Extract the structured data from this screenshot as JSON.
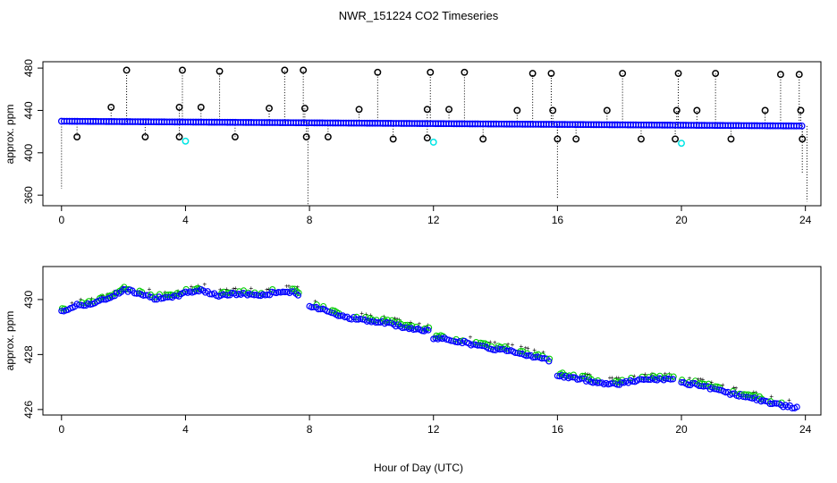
{
  "title": "NWR_151224  CO2 Timeseries",
  "xlabel": "Hour of Day (UTC)",
  "colors": {
    "raw": "#000000",
    "averaged": "#0000ff",
    "flagged": "#00e5e5",
    "secondary": "#00cc00",
    "tertiary": "#ff0000",
    "frame": "#000000"
  },
  "chart_data": [
    {
      "type": "scatter",
      "name": "full-range",
      "ylabel": "approx. ppm",
      "xlim": [
        -0.6,
        24.5
      ],
      "ylim": [
        350,
        486
      ],
      "xticks": [
        0,
        4,
        8,
        12,
        16,
        20,
        24
      ],
      "yticks": [
        360,
        400,
        440,
        480
      ],
      "baseline": {
        "x0": 0,
        "x1": 23.9,
        "y0": 429.8,
        "y1": 425.3
      },
      "spikes_high": [
        [
          1.6,
          443
        ],
        [
          2.1,
          478
        ],
        [
          3.8,
          443
        ],
        [
          3.9,
          478
        ],
        [
          4.5,
          443
        ],
        [
          5.1,
          477
        ],
        [
          6.7,
          442
        ],
        [
          7.2,
          478
        ],
        [
          7.8,
          478
        ],
        [
          7.85,
          442
        ],
        [
          9.6,
          441
        ],
        [
          10.2,
          476
        ],
        [
          11.8,
          441
        ],
        [
          11.9,
          476
        ],
        [
          12.5,
          441
        ],
        [
          13.0,
          476
        ],
        [
          14.7,
          440
        ],
        [
          15.2,
          475
        ],
        [
          15.8,
          475
        ],
        [
          15.85,
          440
        ],
        [
          17.6,
          440
        ],
        [
          18.1,
          475
        ],
        [
          19.9,
          475
        ],
        [
          19.85,
          440
        ],
        [
          20.5,
          440
        ],
        [
          21.1,
          475
        ],
        [
          22.7,
          440
        ],
        [
          23.2,
          474
        ],
        [
          23.8,
          474
        ],
        [
          23.85,
          440
        ]
      ],
      "spikes_low": [
        [
          0.5,
          415
        ],
        [
          2.7,
          415
        ],
        [
          3.8,
          415
        ],
        [
          5.6,
          415
        ],
        [
          7.9,
          415
        ],
        [
          8.6,
          415
        ],
        [
          10.7,
          413
        ],
        [
          11.8,
          414
        ],
        [
          13.6,
          413
        ],
        [
          16.0,
          413
        ],
        [
          16.6,
          413
        ],
        [
          18.7,
          413
        ],
        [
          19.8,
          413
        ],
        [
          21.6,
          413
        ],
        [
          23.9,
          413
        ]
      ],
      "flagged_points": [
        [
          4.0,
          411
        ],
        [
          12.0,
          410
        ],
        [
          20.0,
          409
        ]
      ],
      "drop_lines": [
        [
          0.0,
          366
        ],
        [
          7.95,
          351
        ],
        [
          16.0,
          357
        ],
        [
          23.9,
          380
        ],
        [
          24.05,
          354
        ]
      ]
    },
    {
      "type": "scatter",
      "name": "zoomed",
      "ylabel": "approx. ppm",
      "xlim": [
        -0.6,
        24.5
      ],
      "ylim": [
        425.8,
        431.2
      ],
      "xticks": [
        0,
        4,
        8,
        12,
        16,
        20,
        24
      ],
      "yticks": [
        426,
        428,
        430
      ],
      "trend": [
        [
          0.0,
          429.55
        ],
        [
          0.5,
          429.8
        ],
        [
          1.0,
          429.85
        ],
        [
          1.5,
          430.05
        ],
        [
          2.0,
          430.35
        ],
        [
          2.5,
          430.25
        ],
        [
          3.0,
          430.05
        ],
        [
          3.5,
          430.05
        ],
        [
          4.0,
          430.25
        ],
        [
          4.5,
          430.35
        ],
        [
          5.0,
          430.15
        ],
        [
          5.5,
          430.2
        ],
        [
          6.0,
          430.2
        ],
        [
          6.5,
          430.15
        ],
        [
          7.0,
          430.3
        ],
        [
          7.5,
          430.25
        ],
        [
          7.7,
          430.05
        ],
        null,
        [
          8.0,
          429.75
        ],
        [
          8.5,
          429.65
        ],
        [
          9.0,
          429.4
        ],
        [
          9.5,
          429.3
        ],
        [
          10.0,
          429.2
        ],
        [
          10.5,
          429.15
        ],
        [
          11.0,
          429.0
        ],
        [
          11.5,
          428.9
        ],
        [
          11.9,
          428.85
        ],
        null,
        [
          12.0,
          428.6
        ],
        [
          12.5,
          428.55
        ],
        [
          13.0,
          428.45
        ],
        [
          13.5,
          428.3
        ],
        [
          14.0,
          428.2
        ],
        [
          14.5,
          428.15
        ],
        [
          15.0,
          428.0
        ],
        [
          15.5,
          427.85
        ],
        [
          15.8,
          427.75
        ],
        null,
        [
          16.0,
          427.25
        ],
        [
          16.5,
          427.15
        ],
        [
          17.0,
          427.05
        ],
        [
          17.5,
          426.95
        ],
        [
          18.0,
          426.95
        ],
        [
          18.5,
          427.05
        ],
        [
          19.0,
          427.1
        ],
        [
          19.5,
          427.1
        ],
        [
          19.8,
          427.05
        ],
        null,
        [
          20.0,
          426.95
        ],
        [
          20.5,
          426.9
        ],
        [
          21.0,
          426.75
        ],
        [
          21.5,
          426.6
        ],
        [
          22.0,
          426.5
        ],
        [
          22.5,
          426.35
        ],
        [
          23.0,
          426.2
        ],
        [
          23.5,
          426.1
        ],
        [
          23.8,
          426.05
        ]
      ],
      "jitter": 0.1
    }
  ]
}
